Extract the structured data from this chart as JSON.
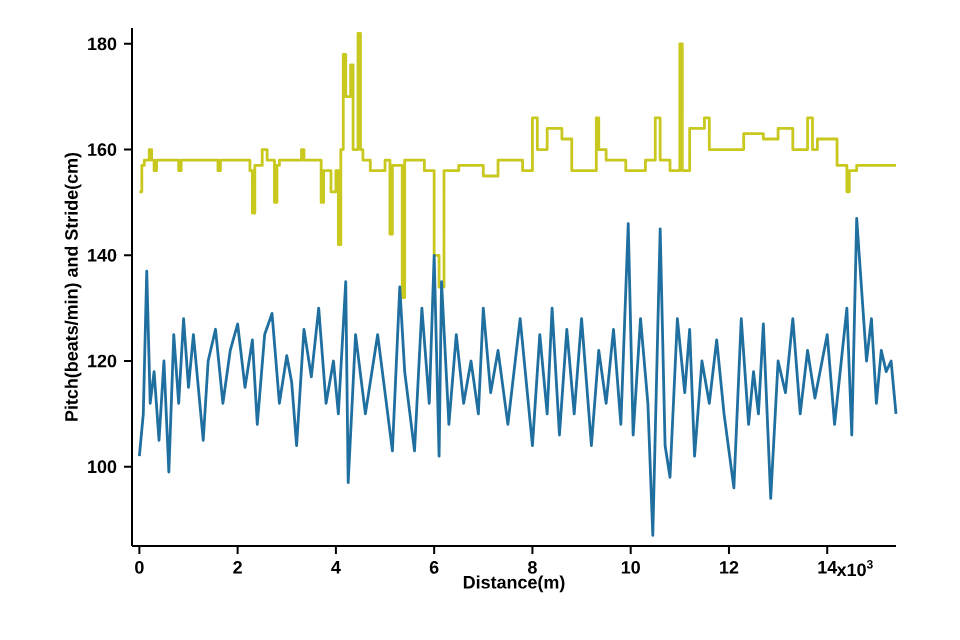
{
  "chart_data": {
    "type": "line",
    "xlabel": "Distance(m)",
    "ylabel": "Pitch(beats/min) and Stride(cm)",
    "annotations": [
      "x10$^{3}$"
    ],
    "xlim": [
      -0.15,
      15.4
    ],
    "ylim": [
      85,
      183
    ],
    "xticks": [
      0,
      2,
      4,
      6,
      8,
      10,
      12,
      14
    ],
    "yticks": [
      100,
      120,
      140,
      160,
      180
    ],
    "series": [
      {
        "type": "step",
        "color": "#c8c81e",
        "x": [
          0,
          0.05,
          0.1,
          0.2,
          0.25,
          0.3,
          0.35,
          0.8,
          0.85,
          1.6,
          1.65,
          2.0,
          2.2,
          2.25,
          2.3,
          2.35,
          2.5,
          2.6,
          2.75,
          2.8,
          2.85,
          3.0,
          3.3,
          3.35,
          3.5,
          3.7,
          3.75,
          3.9,
          4.0,
          4.05,
          4.1,
          4.15,
          4.2,
          4.3,
          4.35,
          4.45,
          4.5,
          4.55,
          4.7,
          5.0,
          5.1,
          5.15,
          5.3,
          5.35,
          5.4,
          5.5,
          5.8,
          6.0,
          6.1,
          6.2,
          6.5,
          7.0,
          7.3,
          7.8,
          8.0,
          8.1,
          8.3,
          8.6,
          8.8,
          9.3,
          9.35,
          9.5,
          9.9,
          10.3,
          10.5,
          10.6,
          10.8,
          11.0,
          11.05,
          11.1,
          11.2,
          11.5,
          11.6,
          11.9,
          12.3,
          12.7,
          13.0,
          13.3,
          13.6,
          13.7,
          13.8,
          14.2,
          14.4,
          14.45,
          14.6,
          15.4
        ],
        "values": [
          152,
          157,
          158,
          160,
          158,
          156,
          158,
          156,
          158,
          156,
          158,
          158,
          158,
          156,
          148,
          157,
          160,
          158,
          150,
          157,
          158,
          158,
          160,
          158,
          158,
          150,
          156,
          152,
          156,
          142,
          160,
          178,
          170,
          176,
          160,
          182,
          160,
          158,
          156,
          158,
          144,
          157,
          157,
          132,
          158,
          158,
          156,
          140,
          134,
          156,
          157,
          155,
          158,
          156,
          166,
          160,
          164,
          162,
          156,
          166,
          160,
          158,
          156,
          158,
          166,
          158,
          156,
          180,
          156,
          156,
          164,
          166,
          160,
          160,
          163,
          162,
          164,
          160,
          166,
          160,
          162,
          157,
          152,
          156,
          157,
          157
        ]
      },
      {
        "color": "#1f6fa0",
        "x": [
          0,
          0.08,
          0.15,
          0.22,
          0.3,
          0.4,
          0.5,
          0.6,
          0.7,
          0.8,
          0.9,
          1.0,
          1.1,
          1.3,
          1.4,
          1.55,
          1.7,
          1.85,
          2.0,
          2.15,
          2.3,
          2.4,
          2.55,
          2.7,
          2.85,
          3.0,
          3.1,
          3.2,
          3.35,
          3.5,
          3.65,
          3.8,
          3.95,
          4.05,
          4.2,
          4.25,
          4.4,
          4.6,
          4.85,
          5.15,
          5.3,
          5.4,
          5.6,
          5.75,
          5.9,
          6.0,
          6.1,
          6.15,
          6.3,
          6.45,
          6.6,
          6.75,
          6.9,
          7.0,
          7.15,
          7.3,
          7.5,
          7.75,
          8.0,
          8.15,
          8.3,
          8.4,
          8.55,
          8.7,
          8.85,
          9.0,
          9.2,
          9.35,
          9.5,
          9.65,
          9.8,
          9.95,
          10.05,
          10.2,
          10.35,
          10.45,
          10.6,
          10.7,
          10.8,
          10.95,
          11.1,
          11.2,
          11.3,
          11.45,
          11.6,
          11.75,
          11.9,
          12.1,
          12.25,
          12.4,
          12.5,
          12.6,
          12.7,
          12.85,
          13.0,
          13.15,
          13.3,
          13.45,
          13.6,
          13.75,
          14.0,
          14.15,
          14.4,
          14.5,
          14.6,
          14.8,
          14.9,
          15.0,
          15.1,
          15.2,
          15.3,
          15.4
        ],
        "values": [
          102,
          110,
          137,
          112,
          118,
          105,
          120,
          99,
          125,
          112,
          128,
          115,
          125,
          105,
          120,
          126,
          112,
          122,
          127,
          115,
          124,
          108,
          125,
          129,
          112,
          121,
          116,
          104,
          126,
          117,
          130,
          112,
          120,
          110,
          135,
          97,
          125,
          110,
          125,
          103,
          134,
          118,
          103,
          130,
          112,
          140,
          102,
          135,
          108,
          125,
          112,
          120,
          110,
          130,
          114,
          122,
          108,
          128,
          104,
          125,
          110,
          130,
          106,
          126,
          110,
          128,
          104,
          122,
          112,
          126,
          108,
          146,
          106,
          128,
          112,
          87,
          145,
          104,
          98,
          128,
          114,
          126,
          102,
          120,
          112,
          124,
          110,
          96,
          128,
          108,
          118,
          110,
          127,
          94,
          120,
          114,
          128,
          110,
          122,
          113,
          125,
          108,
          130,
          106,
          147,
          120,
          128,
          112,
          122,
          118,
          120,
          110
        ]
      }
    ]
  }
}
